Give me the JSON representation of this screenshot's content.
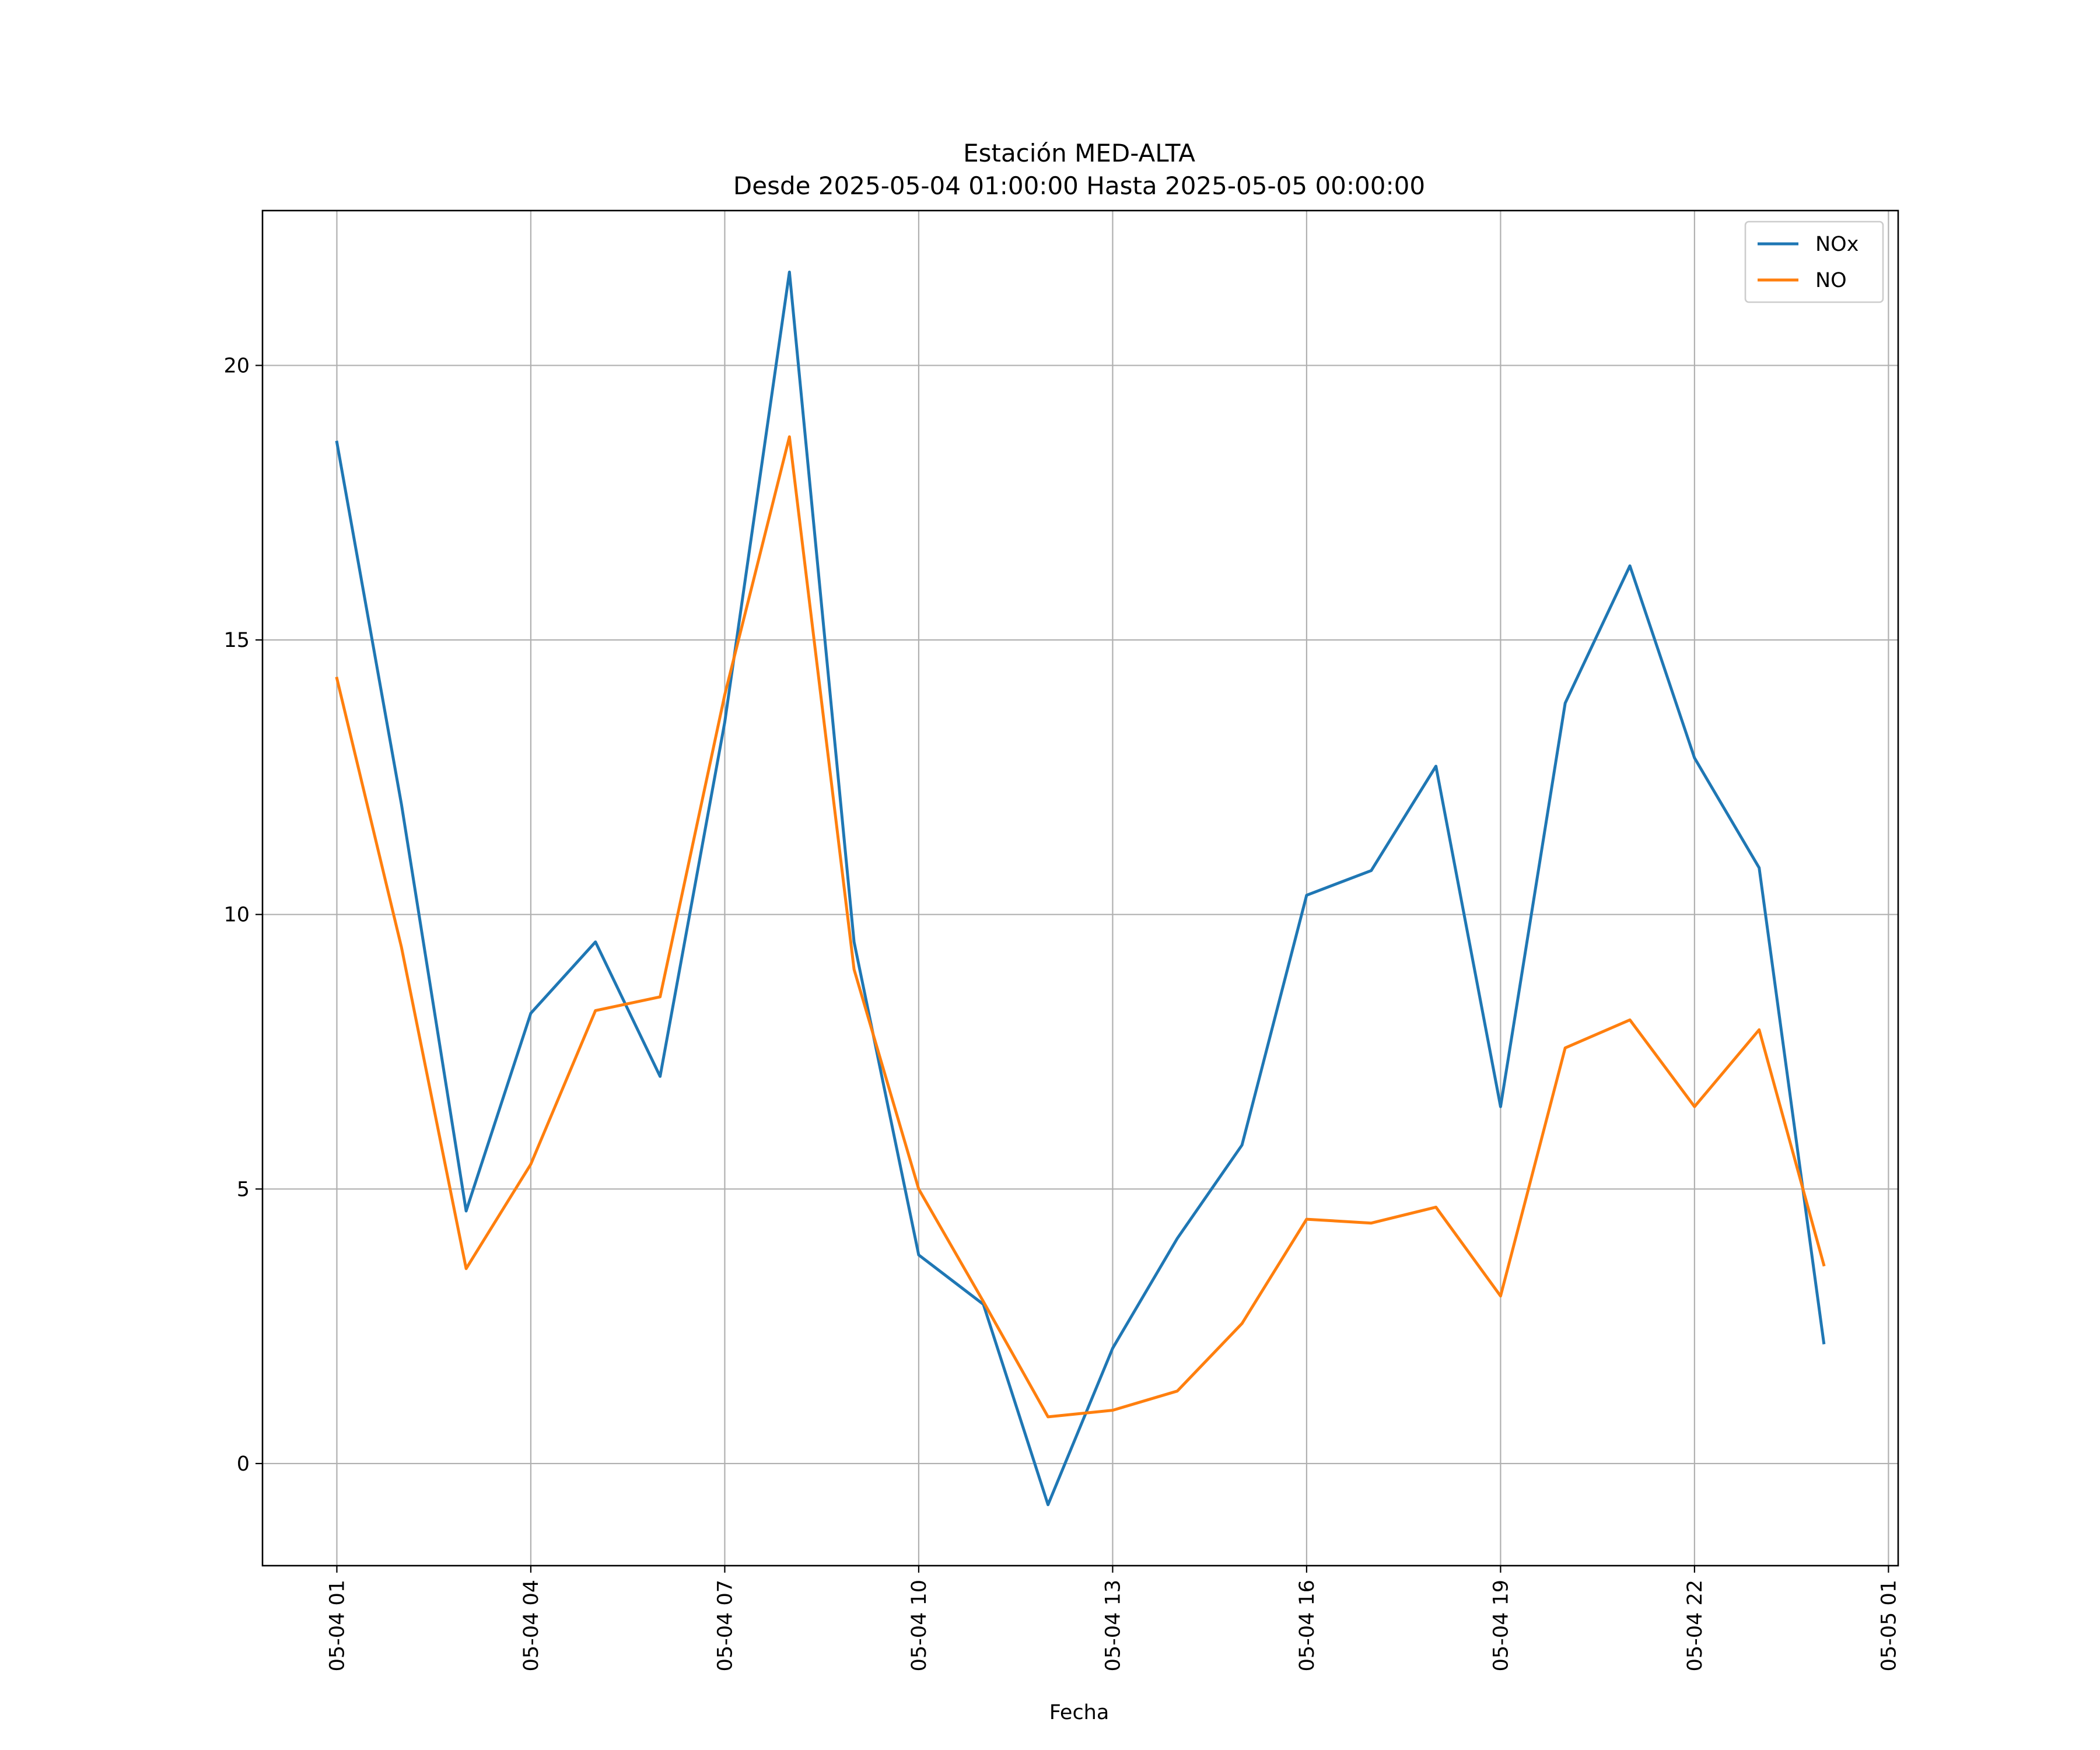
{
  "chart_data": {
    "type": "line",
    "title": "Estación MED-ALTA",
    "subtitle": "Desde 2025-05-04 01:00:00 Hasta 2025-05-05 00:00:00",
    "xlabel": "Fecha",
    "ylabel": "",
    "x": [
      "2025-05-04 01:00",
      "2025-05-04 02:00",
      "2025-05-04 03:00",
      "2025-05-04 04:00",
      "2025-05-04 05:00",
      "2025-05-04 06:00",
      "2025-05-04 07:00",
      "2025-05-04 08:00",
      "2025-05-04 09:00",
      "2025-05-04 10:00",
      "2025-05-04 11:00",
      "2025-05-04 12:00",
      "2025-05-04 13:00",
      "2025-05-04 14:00",
      "2025-05-04 15:00",
      "2025-05-04 16:00",
      "2025-05-04 17:00",
      "2025-05-04 18:00",
      "2025-05-04 19:00",
      "2025-05-04 20:00",
      "2025-05-04 21:00",
      "2025-05-04 22:00",
      "2025-05-04 23:00",
      "2025-05-05 00:00"
    ],
    "series": [
      {
        "name": "NOx",
        "color": "#1f77b4",
        "values": [
          18.6,
          12.0,
          4.6,
          8.2,
          9.5,
          7.05,
          13.5,
          21.7,
          9.5,
          3.8,
          2.9,
          -0.75,
          2.1,
          4.1,
          5.8,
          10.35,
          10.8,
          12.7,
          6.5,
          13.85,
          16.35,
          12.85,
          10.85,
          2.2
        ]
      },
      {
        "name": "NO",
        "color": "#ff7f0e",
        "values": [
          14.3,
          9.4,
          3.55,
          5.45,
          8.25,
          8.5,
          14.0,
          18.7,
          9.0,
          5.0,
          2.95,
          0.85,
          0.97,
          1.32,
          2.55,
          4.45,
          4.38,
          4.67,
          3.05,
          7.57,
          8.08,
          6.5,
          7.9,
          3.62
        ]
      }
    ],
    "xticks": [
      "05-04 01",
      "05-04 04",
      "05-04 07",
      "05-04 10",
      "05-04 13",
      "05-04 16",
      "05-04 19",
      "05-04 22",
      "05-05 01"
    ],
    "yticks": [
      "0",
      "5",
      "10",
      "15",
      "20"
    ],
    "ylim": [
      -1.86,
      22.82
    ],
    "xlim": [
      "2025-05-04 -0:09",
      "2025-05-05 01:09"
    ],
    "grid": true,
    "legend": "top-right"
  }
}
